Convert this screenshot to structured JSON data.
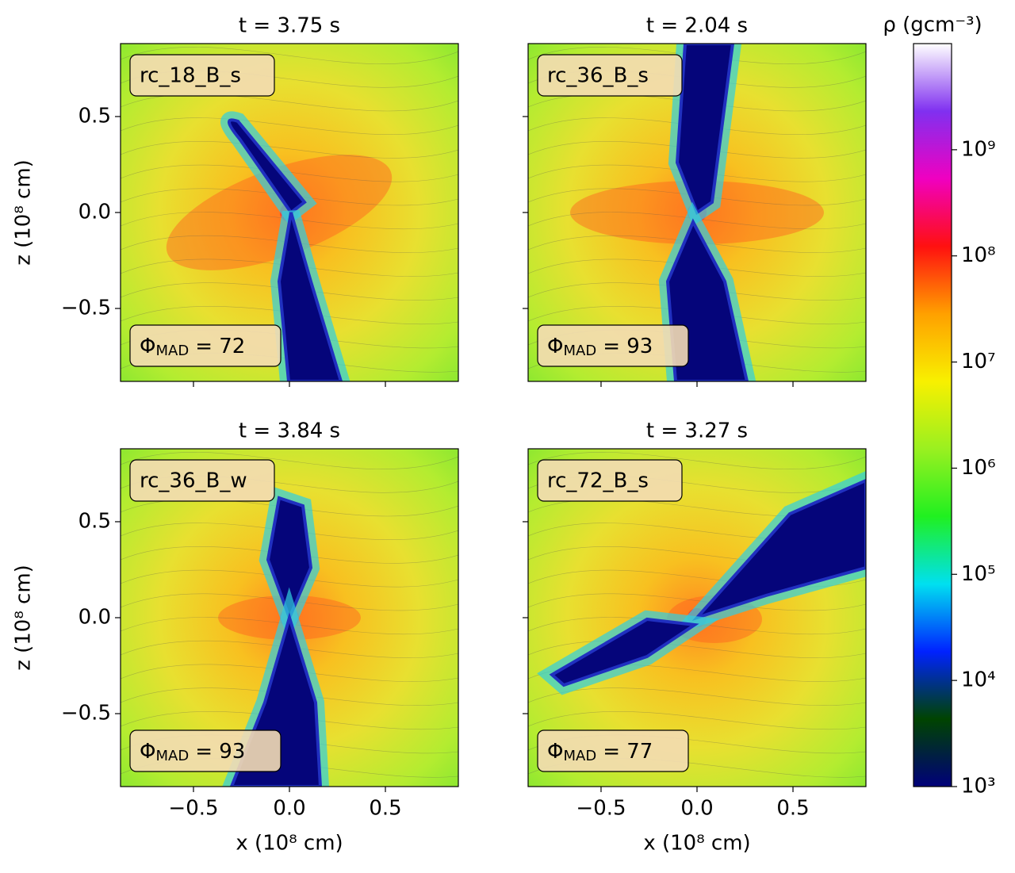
{
  "chart_data": [
    {
      "type": "heatmap",
      "title": "t = 3.75 s",
      "label": "rc_18_B_s",
      "annotation": {
        "symbol": "Φ",
        "subscript": "MAD",
        "text": "= 72"
      },
      "ylabel": "z (10⁸ cm)",
      "xlim": [
        -0.88,
        0.88
      ],
      "ylim": [
        -0.88,
        0.88
      ],
      "xticks": [
        {
          "value": -0.5,
          "label": "−0.5"
        },
        {
          "value": 0,
          "label": "0.0"
        },
        {
          "value": 0.5,
          "label": "0.5"
        }
      ],
      "yticks": [
        {
          "value": -0.5,
          "label": "−0.5"
        },
        {
          "value": 0,
          "label": "0.0"
        },
        {
          "value": 0.5,
          "label": "0.5"
        }
      ]
    },
    {
      "type": "heatmap",
      "title": "t = 2.04 s",
      "label": "rc_36_B_s",
      "annotation": {
        "symbol": "Φ",
        "subscript": "MAD",
        "text": "= 93"
      },
      "xlim": [
        -0.88,
        0.88
      ],
      "ylim": [
        -0.88,
        0.88
      ],
      "xticks": [
        {
          "value": -0.5,
          "label": "−0.5"
        },
        {
          "value": 0,
          "label": "0.0"
        },
        {
          "value": 0.5,
          "label": "0.5"
        }
      ],
      "yticks": [
        {
          "value": -0.5,
          "label": "−0.5"
        },
        {
          "value": 0,
          "label": "0.0"
        },
        {
          "value": 0.5,
          "label": "0.5"
        }
      ]
    },
    {
      "type": "heatmap",
      "title": "t = 3.84 s",
      "label": "rc_36_B_w",
      "annotation": {
        "symbol": "Φ",
        "subscript": "MAD",
        "text": "= 93"
      },
      "xlabel": "x (10⁸ cm)",
      "ylabel": "z (10⁸ cm)",
      "xlim": [
        -0.88,
        0.88
      ],
      "ylim": [
        -0.88,
        0.88
      ],
      "xticks": [
        {
          "value": -0.5,
          "label": "−0.5"
        },
        {
          "value": 0,
          "label": "0.0"
        },
        {
          "value": 0.5,
          "label": "0.5"
        }
      ],
      "yticks": [
        {
          "value": -0.5,
          "label": "−0.5"
        },
        {
          "value": 0,
          "label": "0.0"
        },
        {
          "value": 0.5,
          "label": "0.5"
        }
      ]
    },
    {
      "type": "heatmap",
      "title": "t = 3.27 s",
      "label": "rc_72_B_s",
      "annotation": {
        "symbol": "Φ",
        "subscript": "MAD",
        "text": "= 77"
      },
      "xlabel": "x (10⁸ cm)",
      "xlim": [
        -0.88,
        0.88
      ],
      "ylim": [
        -0.88,
        0.88
      ],
      "xticks": [
        {
          "value": -0.5,
          "label": "−0.5"
        },
        {
          "value": 0,
          "label": "0.0"
        },
        {
          "value": 0.5,
          "label": "0.5"
        }
      ],
      "yticks": [
        {
          "value": -0.5,
          "label": "−0.5"
        },
        {
          "value": 0,
          "label": "0.0"
        },
        {
          "value": 0.5,
          "label": "0.5"
        }
      ]
    }
  ],
  "colorbar": {
    "label": "ρ (gcm⁻³)",
    "scale": "log",
    "lim": [
      1000,
      10000000000
    ],
    "ticks": [
      {
        "value": 1000,
        "label": "10³"
      },
      {
        "value": 10000,
        "label": "10⁴"
      },
      {
        "value": 100000,
        "label": "10⁵"
      },
      {
        "value": 1000000,
        "label": "10⁶"
      },
      {
        "value": 10000000,
        "label": "10⁷"
      },
      {
        "value": 100000000,
        "label": "10⁸"
      },
      {
        "value": 1000000000,
        "label": "10⁹"
      }
    ],
    "colors": [
      "#00007a",
      "#004400",
      "#0022ff",
      "#00e0f0",
      "#20f020",
      "#9af020",
      "#f8f000",
      "#ffa000",
      "#ff1010",
      "#f000c0",
      "#8030f0",
      "#ffffff"
    ]
  }
}
